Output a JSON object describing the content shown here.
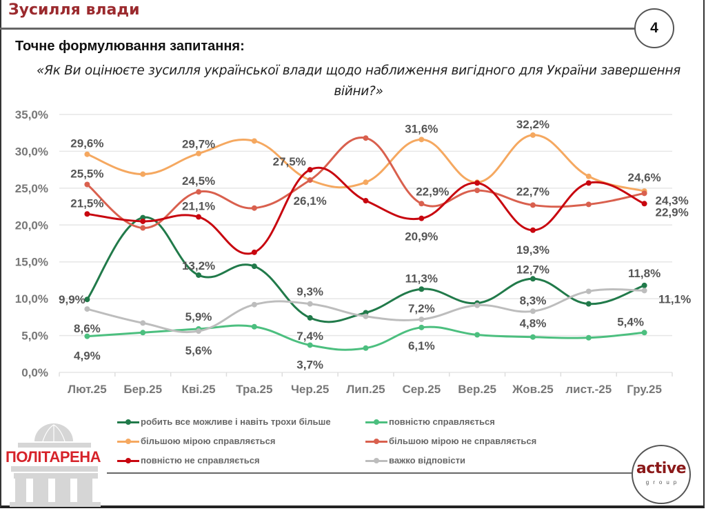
{
  "header": {
    "title": "Зусилля влади",
    "page_number": "4",
    "subtitle": "Точне формулювання запитання:",
    "question": "«Як Ви оцінюєте зусилля української влади щодо наближення вигідного для України завершення війни?»"
  },
  "logos": {
    "left": "ПОЛІТАРЕНА",
    "right_main": "active",
    "right_sub": "group"
  },
  "chart_data": {
    "type": "line",
    "title": "",
    "xlabel": "",
    "ylabel": "",
    "ylim": [
      0,
      35
    ],
    "yticks": [
      "0,0%",
      "5,0%",
      "10,0%",
      "15,0%",
      "20,0%",
      "25,0%",
      "30,0%",
      "35,0%"
    ],
    "ytick_values": [
      0,
      5,
      10,
      15,
      20,
      25,
      30,
      35
    ],
    "grid": true,
    "smooth": true,
    "legend_position": "bottom",
    "categories": [
      "Лют.25",
      "Бер.25",
      "Кві.25",
      "Тра.25",
      "Чер.25",
      "Лип.25",
      "Сер.25",
      "Вер.25",
      "Жов.25",
      "лист.-25",
      "Гру.25"
    ],
    "series": [
      {
        "name": "робить все можливе і навіть трохи більше",
        "color": "#217a4a",
        "values": [
          9.9,
          21.0,
          13.2,
          14.4,
          7.4,
          8.1,
          11.3,
          9.4,
          12.7,
          9.3,
          11.8
        ],
        "labels": [
          "9,9%",
          "",
          "13,2%",
          "",
          "7,4%",
          "",
          "11,3%",
          "",
          "12,7%",
          "",
          "11,8%"
        ]
      },
      {
        "name": "повністю справляється",
        "color": "#4cbf7f",
        "values": [
          4.9,
          5.4,
          5.9,
          6.2,
          3.7,
          3.3,
          6.1,
          5.1,
          4.8,
          4.7,
          5.4
        ],
        "labels": [
          "4,9%",
          "",
          "5,9%",
          "",
          "3,7%",
          "",
          "6,1%",
          "",
          "4,8%",
          "",
          "5,4%"
        ]
      },
      {
        "name": "більшою мірою справляється",
        "color": "#f5a860",
        "values": [
          29.6,
          26.9,
          29.7,
          31.4,
          26.1,
          25.8,
          31.6,
          25.8,
          32.2,
          26.6,
          24.6
        ],
        "labels": [
          "29,6%",
          "",
          "29,7%",
          "",
          "26,1%",
          "",
          "31,6%",
          "",
          "32,2%",
          "",
          "24,6%"
        ]
      },
      {
        "name": "більшою мірою не справляється",
        "color": "#d9604e",
        "values": [
          25.5,
          19.6,
          24.5,
          22.3,
          26.1,
          31.8,
          22.9,
          24.7,
          22.7,
          22.8,
          24.3
        ],
        "labels": [
          "25,5%",
          "",
          "24,5%",
          "",
          "",
          "",
          "22,9%",
          "",
          "22,7%",
          "",
          "24,3%"
        ]
      },
      {
        "name": "повністю не справляється",
        "color": "#c8060f",
        "values": [
          21.5,
          20.5,
          21.1,
          16.3,
          27.5,
          23.3,
          20.9,
          25.7,
          19.3,
          25.7,
          22.9
        ],
        "labels": [
          "21,5%",
          "",
          "21,1%",
          "",
          "27,5%",
          "",
          "20,9%",
          "",
          "19,3%",
          "",
          "22,9%"
        ]
      },
      {
        "name": "важко відповісти",
        "color": "#bdbdbd",
        "values": [
          8.6,
          6.7,
          5.6,
          9.2,
          9.3,
          7.6,
          7.2,
          9.1,
          8.3,
          11.0,
          11.1
        ],
        "labels": [
          "8,6%",
          "",
          "5,6%",
          "",
          "9,3%",
          "",
          "7,2%",
          "",
          "8,3%",
          "",
          "11,1%"
        ]
      }
    ]
  }
}
